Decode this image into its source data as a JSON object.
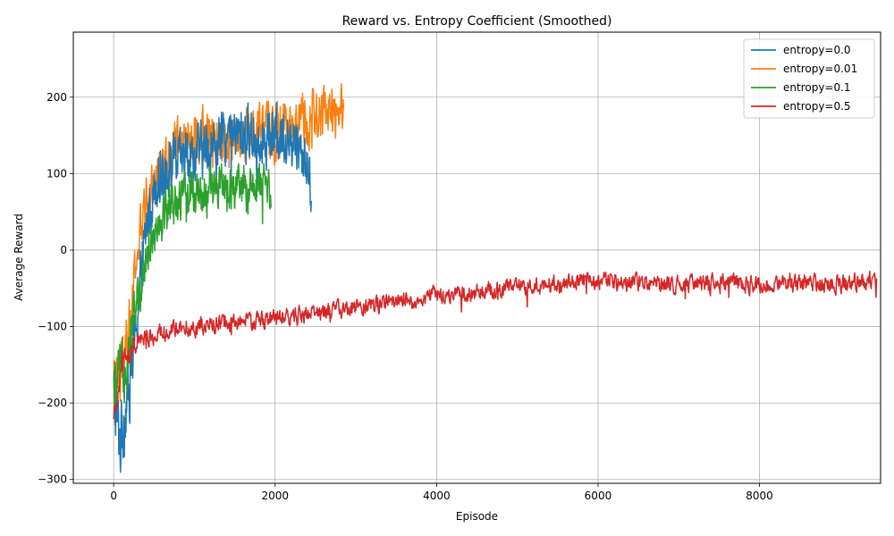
{
  "chart_data": {
    "type": "line",
    "title": "Reward vs. Entropy Coefficient (Smoothed)",
    "xlabel": "Episode",
    "ylabel": "Average Reward",
    "xlim": [
      -500,
      9500
    ],
    "ylim": [
      -305,
      285
    ],
    "x_ticks": [
      0,
      2000,
      4000,
      6000,
      8000
    ],
    "x_tick_labels": [
      "0",
      "2000",
      "4000",
      "6000",
      "8000"
    ],
    "y_ticks": [
      -300,
      -200,
      -100,
      0,
      100,
      200
    ],
    "y_tick_labels": [
      "−300",
      "−200",
      "−100",
      "0",
      "100",
      "200"
    ],
    "grid": true,
    "legend_position": "top-right",
    "series": [
      {
        "name": "entropy=0.0",
        "color": "#1f77b4",
        "anchors": [
          [
            0,
            -190
          ],
          [
            80,
            -250
          ],
          [
            150,
            -200
          ],
          [
            250,
            -130
          ],
          [
            350,
            -20
          ],
          [
            450,
            60
          ],
          [
            550,
            100
          ],
          [
            700,
            110
          ],
          [
            900,
            120
          ],
          [
            1100,
            130
          ],
          [
            1300,
            140
          ],
          [
            1500,
            150
          ],
          [
            1700,
            150
          ],
          [
            1900,
            150
          ],
          [
            2100,
            150
          ],
          [
            2300,
            140
          ],
          [
            2450,
            90
          ]
        ],
        "noise_amplitude": 55,
        "x_end": 2450
      },
      {
        "name": "entropy=0.01",
        "color": "#ff7f0e",
        "anchors": [
          [
            0,
            -190
          ],
          [
            100,
            -170
          ],
          [
            200,
            -100
          ],
          [
            300,
            0
          ],
          [
            400,
            60
          ],
          [
            600,
            110
          ],
          [
            800,
            140
          ],
          [
            1000,
            150
          ],
          [
            1200,
            150
          ],
          [
            1400,
            150
          ],
          [
            1600,
            150
          ],
          [
            1800,
            155
          ],
          [
            2000,
            155
          ],
          [
            2200,
            160
          ],
          [
            2400,
            170
          ],
          [
            2600,
            175
          ],
          [
            2850,
            185
          ]
        ],
        "noise_amplitude": 50,
        "x_end": 2850
      },
      {
        "name": "entropy=0.1",
        "color": "#2ca02c",
        "anchors": [
          [
            0,
            -190
          ],
          [
            100,
            -160
          ],
          [
            200,
            -120
          ],
          [
            300,
            -60
          ],
          [
            400,
            -10
          ],
          [
            500,
            30
          ],
          [
            700,
            60
          ],
          [
            900,
            70
          ],
          [
            1100,
            75
          ],
          [
            1300,
            80
          ],
          [
            1500,
            80
          ],
          [
            1700,
            80
          ],
          [
            1900,
            85
          ]
        ],
        "noise_amplitude": 45,
        "x_end": 1950
      },
      {
        "name": "entropy=0.5",
        "color": "#d62728",
        "anchors": [
          [
            0,
            -230
          ],
          [
            100,
            -150
          ],
          [
            300,
            -120
          ],
          [
            700,
            -105
          ],
          [
            1000,
            -100
          ],
          [
            2000,
            -90
          ],
          [
            3000,
            -75
          ],
          [
            4000,
            -60
          ],
          [
            5000,
            -50
          ],
          [
            6000,
            -40
          ],
          [
            7000,
            -45
          ],
          [
            8000,
            -45
          ],
          [
            9000,
            -45
          ],
          [
            9450,
            -40
          ]
        ],
        "noise_amplitude": 18,
        "x_end": 9450
      }
    ]
  }
}
